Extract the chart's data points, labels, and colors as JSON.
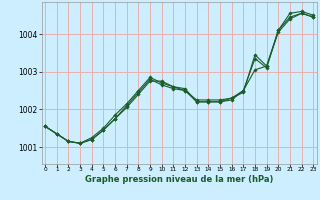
{
  "xlabel": "Graphe pression niveau de la mer (hPa)",
  "bg_color": "#cceeff",
  "grid_color": "#e8b0b0",
  "line_color": "#1a5c2a",
  "x_ticks": [
    0,
    1,
    2,
    3,
    4,
    5,
    6,
    7,
    8,
    9,
    10,
    11,
    12,
    13,
    14,
    15,
    16,
    17,
    18,
    19,
    20,
    21,
    22,
    23
  ],
  "ylim": [
    1000.55,
    1004.85
  ],
  "yticks": [
    1001,
    1002,
    1003,
    1004
  ],
  "xlim": [
    -0.3,
    23.3
  ],
  "series": [
    [
      1001.55,
      1001.35,
      1001.15,
      1001.1,
      1001.2,
      1001.45,
      1001.75,
      1002.05,
      1002.4,
      1002.75,
      1002.75,
      1002.6,
      1002.55,
      1002.2,
      1002.2,
      1002.2,
      1002.3,
      1002.45,
      1003.45,
      1003.15,
      1004.1,
      1004.55,
      1004.6,
      1004.5
    ],
    [
      1001.55,
      1001.35,
      1001.15,
      1001.1,
      1001.2,
      1001.45,
      1001.75,
      1002.1,
      1002.45,
      1002.8,
      1002.65,
      1002.55,
      1002.5,
      1002.2,
      1002.2,
      1002.2,
      1002.25,
      1002.5,
      1003.05,
      1003.15,
      1004.05,
      1004.4,
      1004.55,
      1004.45
    ],
    [
      1001.55,
      1001.35,
      1001.15,
      1001.1,
      1001.25,
      1001.5,
      1001.85,
      1002.15,
      1002.5,
      1002.85,
      1002.7,
      1002.6,
      1002.5,
      1002.25,
      1002.25,
      1002.25,
      1002.3,
      1002.5,
      1003.35,
      1003.1,
      1004.1,
      1004.45,
      1004.55,
      1004.45
    ]
  ]
}
